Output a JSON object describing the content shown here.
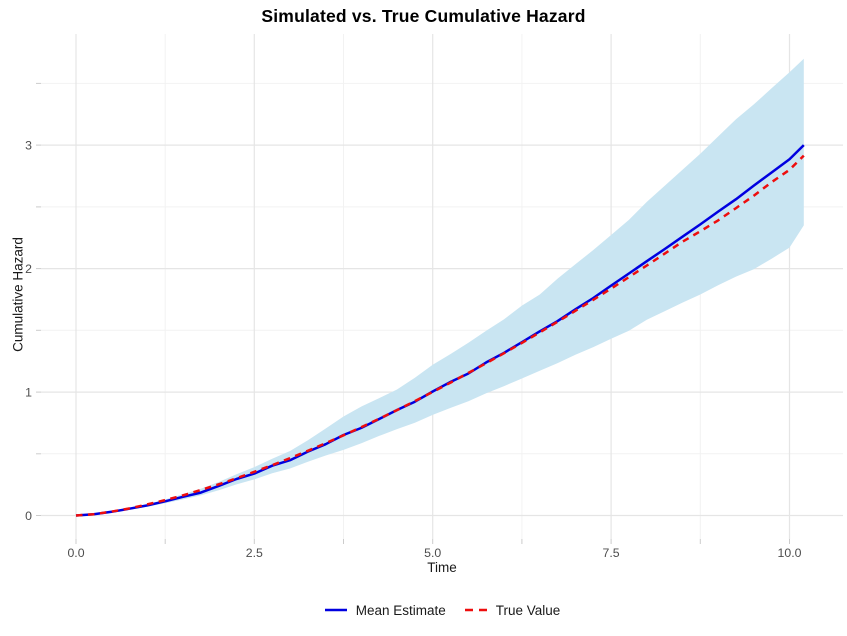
{
  "title": "Simulated vs. True Cumulative Hazard",
  "legend": {
    "items": [
      {
        "label": "Mean Estimate",
        "color": "#0000E0",
        "style": "solid"
      },
      {
        "label": "True Value",
        "color": "#EE0D0D",
        "style": "dashed"
      }
    ]
  },
  "colors": {
    "ribbon": "#C9E5F2",
    "mean_line": "#0000E0",
    "true_line": "#EE0D0D",
    "grid_major": "#E5E5E5",
    "grid_minor": "#F2F2F2",
    "tick_mark": "#CCCCCC",
    "tick_label": "#4D4D4D",
    "axis_title": "#1A1A1A",
    "title": "#000000",
    "background": "#FFFFFF"
  },
  "chart_data": {
    "type": "line",
    "title": "Simulated vs. True Cumulative Hazard",
    "xlabel": "Time",
    "ylabel": "Cumulative Hazard",
    "xlim": [
      -0.49,
      10.75
    ],
    "ylim": [
      -0.19,
      3.9
    ],
    "grid": "on",
    "legend_position": "bottom",
    "x_ticks": {
      "values": [
        0,
        2.5,
        5,
        7.5,
        10
      ],
      "labels": [
        "0.0",
        "2.5",
        "5.0",
        "7.5",
        "10.0"
      ]
    },
    "x_minor": [
      1.25,
      3.75,
      6.25,
      8.75
    ],
    "y_ticks": {
      "values": [
        0,
        1,
        2,
        3
      ],
      "labels": [
        "0",
        "1",
        "2",
        "3"
      ]
    },
    "y_minor": [
      0.5,
      1.5,
      2.5,
      3.5
    ],
    "x": [
      0,
      0.25,
      0.5,
      0.75,
      1,
      1.25,
      1.5,
      1.75,
      2,
      2.25,
      2.5,
      2.75,
      3,
      3.25,
      3.5,
      3.75,
      4,
      4.25,
      4.5,
      4.75,
      5,
      5.25,
      5.5,
      5.75,
      6,
      6.25,
      6.5,
      6.75,
      7,
      7.25,
      7.5,
      7.75,
      8,
      8.25,
      8.5,
      8.75,
      9,
      9.25,
      9.5,
      9.75,
      10,
      10.2
    ],
    "series": [
      {
        "name": "Mean Estimate",
        "color": "#0000E0",
        "style": "solid",
        "values": [
          0.0,
          0.01,
          0.03,
          0.055,
          0.082,
          0.115,
          0.152,
          0.186,
          0.24,
          0.296,
          0.34,
          0.404,
          0.448,
          0.518,
          0.578,
          0.652,
          0.71,
          0.782,
          0.855,
          0.922,
          1.005,
          1.082,
          1.15,
          1.24,
          1.318,
          1.404,
          1.492,
          1.575,
          1.67,
          1.762,
          1.862,
          1.96,
          2.06,
          2.158,
          2.258,
          2.358,
          2.462,
          2.562,
          2.672,
          2.778,
          2.885,
          3.0
        ]
      },
      {
        "name": "True Value",
        "color": "#EE0D0D",
        "style": "dashed",
        "values": [
          0.0,
          0.011,
          0.032,
          0.058,
          0.09,
          0.125,
          0.164,
          0.207,
          0.253,
          0.302,
          0.354,
          0.408,
          0.465,
          0.524,
          0.586,
          0.65,
          0.716,
          0.784,
          0.854,
          0.927,
          1.001,
          1.077,
          1.155,
          1.234,
          1.315,
          1.398,
          1.483,
          1.57,
          1.658,
          1.747,
          1.838,
          1.931,
          2.025,
          2.121,
          2.218,
          2.302,
          2.39,
          2.49,
          2.59,
          2.7,
          2.8,
          2.915
        ]
      }
    ],
    "band": {
      "name": "confidence-ribbon",
      "color": "#C9E5F2",
      "lower": [
        0.0,
        0.005,
        0.024,
        0.047,
        0.071,
        0.099,
        0.131,
        0.163,
        0.205,
        0.252,
        0.293,
        0.342,
        0.381,
        0.435,
        0.486,
        0.532,
        0.585,
        0.645,
        0.7,
        0.752,
        0.815,
        0.872,
        0.925,
        0.99,
        1.048,
        1.11,
        1.172,
        1.235,
        1.302,
        1.364,
        1.432,
        1.496,
        1.585,
        1.655,
        1.725,
        1.79,
        1.865,
        1.935,
        1.995,
        2.08,
        2.17,
        2.35
      ],
      "upper": [
        0.004,
        0.015,
        0.036,
        0.063,
        0.093,
        0.131,
        0.173,
        0.217,
        0.272,
        0.334,
        0.392,
        0.46,
        0.523,
        0.609,
        0.705,
        0.802,
        0.883,
        0.951,
        1.021,
        1.116,
        1.222,
        1.308,
        1.4,
        1.497,
        1.59,
        1.7,
        1.79,
        1.919,
        2.035,
        2.151,
        2.272,
        2.394,
        2.54,
        2.67,
        2.8,
        2.93,
        3.07,
        3.21,
        3.33,
        3.46,
        3.59,
        3.7
      ]
    }
  }
}
